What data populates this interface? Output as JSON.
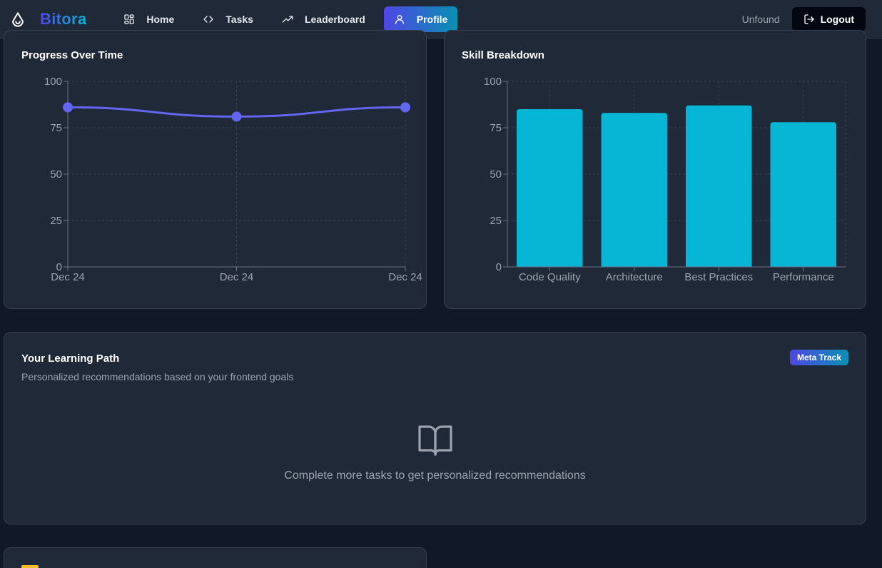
{
  "app": {
    "brand_name": "Bitora",
    "username": "Unfound",
    "logout_label": "Logout"
  },
  "nav": {
    "items": [
      {
        "label": "Home",
        "icon": "grid-icon",
        "active": false
      },
      {
        "label": "Tasks",
        "icon": "code-icon",
        "active": false
      },
      {
        "label": "Leaderboard",
        "icon": "trending-up-icon",
        "active": false
      },
      {
        "label": "Profile",
        "icon": "user-icon",
        "active": true
      }
    ]
  },
  "progress": {
    "title": "Progress Over Time"
  },
  "skills": {
    "title": "Skill Breakdown"
  },
  "learning_path": {
    "title": "Your Learning Path",
    "subtitle": "Personalized recommendations based on your frontend goals",
    "badge": "Meta Track",
    "empty_icon": "book-open-icon",
    "empty_text": "Complete more tasks to get personalized recommendations"
  },
  "colors": {
    "accent": "#6366f1",
    "bar": "#06b6d4",
    "card_bg": "#1f2937",
    "page_bg": "#111827"
  },
  "chart_data": [
    {
      "type": "line",
      "x": [
        "Dec 24",
        "Dec 24",
        "Dec 24"
      ],
      "series": [
        {
          "values": [
            86,
            81,
            86
          ]
        }
      ],
      "ylim": [
        0,
        100
      ],
      "yticks": [
        0,
        25,
        50,
        75,
        100
      ],
      "grid": true,
      "color": "#6366f1"
    },
    {
      "type": "bar",
      "categories": [
        "Code Quality",
        "Architecture",
        "Best Practices",
        "Performance"
      ],
      "values": [
        85,
        83,
        87,
        78
      ],
      "ylim": [
        0,
        100
      ],
      "yticks": [
        0,
        25,
        50,
        75,
        100
      ],
      "grid": true,
      "color": "#06b6d4"
    }
  ]
}
